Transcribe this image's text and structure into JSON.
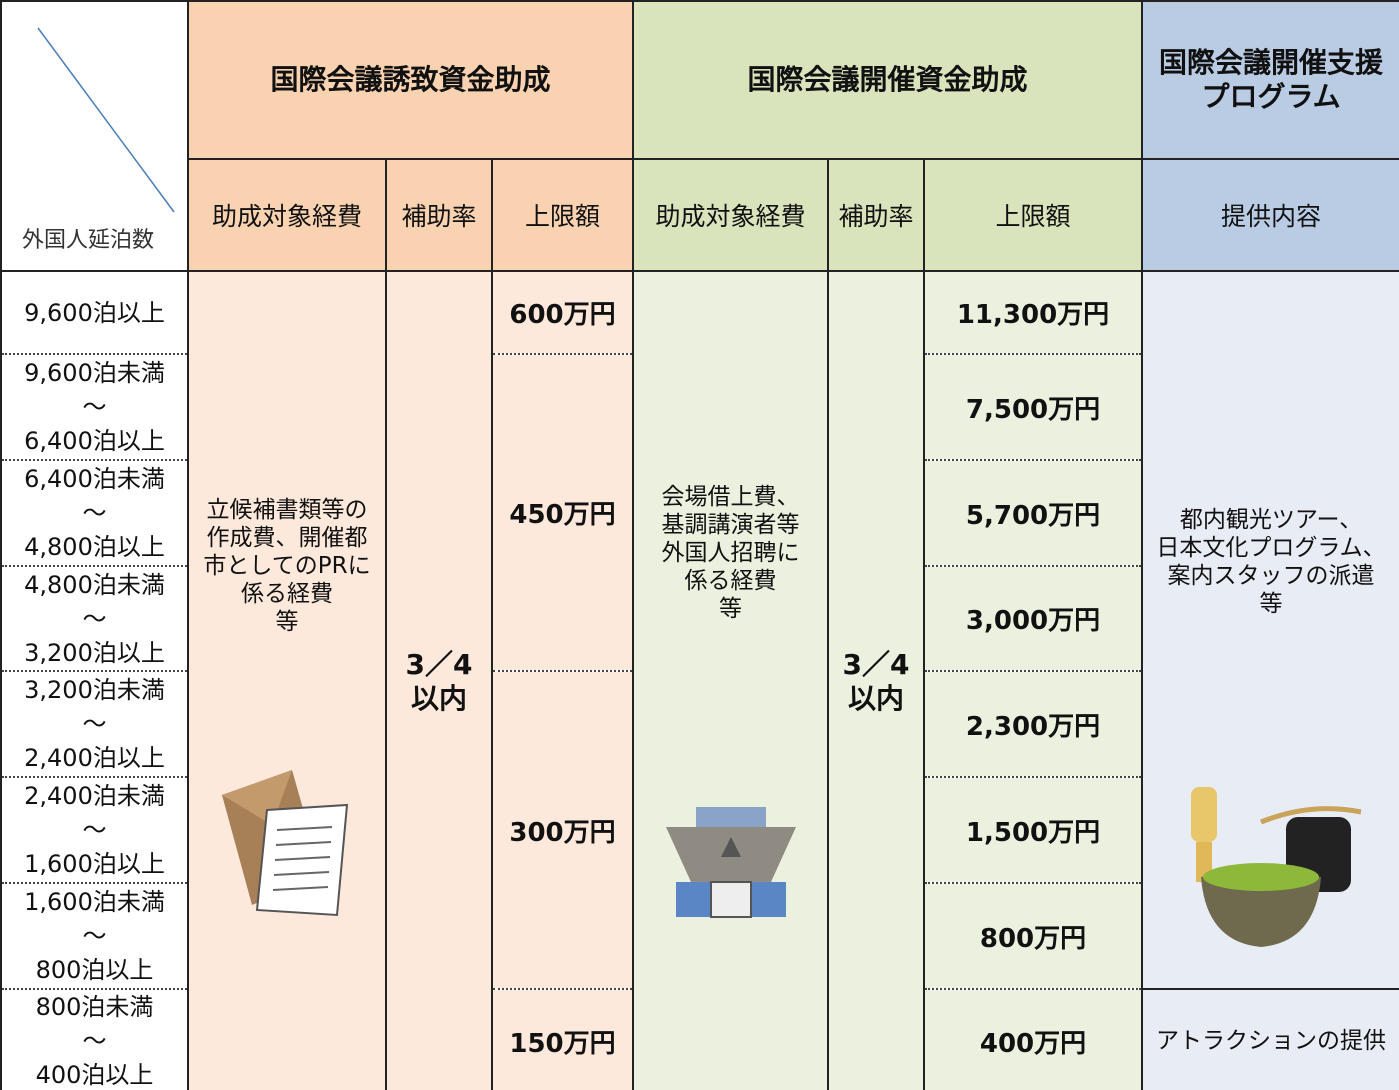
{
  "table": {
    "corner": "外国人延泊数",
    "groups": [
      {
        "title": "国際会議誘致資金助成",
        "subheaders": [
          "助成対象経費",
          "補助率",
          "上限額"
        ]
      },
      {
        "title": "国際会議開催資金助成",
        "subheaders": [
          "助成対象経費",
          "補助率",
          "上限額"
        ]
      },
      {
        "title": "国際会議開催支援\nプログラム",
        "subheaders": [
          "提供内容"
        ]
      }
    ],
    "rows": [
      "9,600泊以上",
      "9,600泊未満\n～\n6,400泊以上",
      "6,400泊未満\n～\n4,800泊以上",
      "4,800泊未満\n～\n3,200泊以上",
      "3,200泊未満\n～\n2,400泊以上",
      "2,400泊未満\n～\n1,600泊以上",
      "1,600泊未満\n～\n800泊以上",
      "800泊未満\n～\n400泊以上"
    ],
    "invite": {
      "expenses": "立候補書類等の\n作成費、開催都\n市としてのPRに\n係る経費\n等",
      "rate": "3／4\n以内",
      "limits": [
        "600万円",
        "450万円",
        "300万円",
        "150万円"
      ]
    },
    "hosting": {
      "expenses": "会場借上費、\n基調講演者等\n外国人招聘に\n係る経費\n等",
      "rate": "3／4\n以内",
      "limits": [
        "11,300万円",
        "7,500万円",
        "5,700万円",
        "3,000万円",
        "2,300万円",
        "1,500万円",
        "800万円",
        "400万円"
      ]
    },
    "support": {
      "contents": [
        "都内観光ツアー、\n日本文化プログラム、\n案内スタッフの派遣\n等",
        "アトラクションの提供"
      ]
    }
  }
}
